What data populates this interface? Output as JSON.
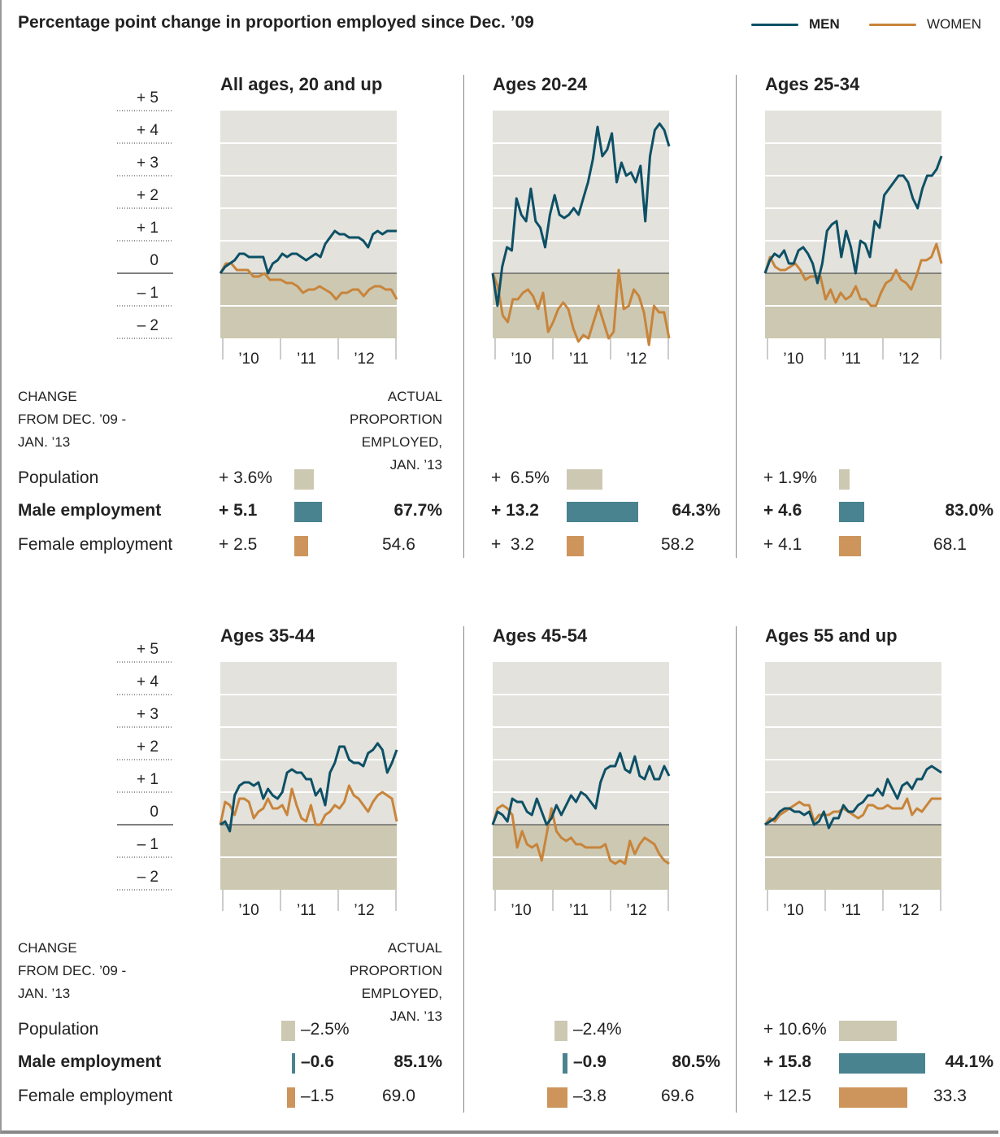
{
  "chart_data": {
    "type": "line",
    "title": "Percentage point change in proportion employed since Dec. ’09",
    "legend": [
      {
        "name": "MEN",
        "color": "#0d5066"
      },
      {
        "name": "WOMEN",
        "color": "#c8843a"
      }
    ],
    "legend_placement": "top-right",
    "ylabel": "Percentage point change",
    "y_ticks": [
      "+ 5",
      "+ 4",
      "+ 3",
      "+ 2",
      "+ 1",
      "0",
      "– 1",
      "– 2"
    ],
    "ylim": [
      -2,
      5
    ],
    "x_ticks": [
      "’10",
      "’11",
      "’12"
    ],
    "x_range": [
      "Dec 2009",
      "Jan 2013"
    ],
    "panels": [
      {
        "title": "All ages, 20 and up",
        "men": [
          0,
          0.2,
          0.3,
          0.4,
          0.6,
          0.6,
          0.5,
          0.5,
          0.5,
          0.5,
          0,
          0.3,
          0.4,
          0.6,
          0.5,
          0.6,
          0.6,
          0.5,
          0.4,
          0.5,
          0.6,
          0.5,
          0.9,
          1.1,
          1.3,
          1.2,
          1.2,
          1.1,
          1.1,
          1.1,
          1.0,
          0.8,
          1.2,
          1.3,
          1.2,
          1.3,
          1.3,
          1.3
        ],
        "women": [
          0,
          0.3,
          0.3,
          0.1,
          0.1,
          0.1,
          -0.1,
          -0.1,
          0,
          -0.2,
          -0.2,
          -0.2,
          -0.3,
          -0.3,
          -0.4,
          -0.6,
          -0.5,
          -0.5,
          -0.4,
          -0.5,
          -0.6,
          -0.8,
          -0.6,
          -0.6,
          -0.5,
          -0.5,
          -0.7,
          -0.5,
          -0.4,
          -0.4,
          -0.5,
          -0.5,
          -0.8
        ]
      },
      {
        "title": "Ages 20-24",
        "men": [
          0,
          -1,
          0.2,
          0.8,
          0.7,
          2.3,
          1.8,
          1.6,
          2.6,
          1.6,
          1.4,
          0.8,
          1.8,
          2.4,
          1.8,
          1.7,
          1.8,
          2.0,
          1.8,
          2.3,
          2.8,
          3.5,
          4.5,
          3.6,
          3.8,
          4.3,
          2.8,
          3.4,
          3.0,
          3.1,
          2.8,
          3.3,
          1.6,
          3.6,
          4.4,
          4.6,
          4.4,
          3.9
        ],
        "women": [
          0,
          -0.4,
          -1.3,
          -1.5,
          -0.8,
          -0.8,
          -0.6,
          -0.5,
          -0.7,
          -1.1,
          -0.6,
          -1.8,
          -1.5,
          -1.1,
          -0.9,
          -1.1,
          -1.7,
          -2.1,
          -1.9,
          -2.0,
          -1.5,
          -1.0,
          -1.5,
          -2.0,
          -1.8,
          0.1,
          -1.1,
          -1.0,
          -0.5,
          -0.7,
          -1.2,
          -2.2,
          -1.0,
          -1.2,
          -1.2,
          -2.0
        ]
      },
      {
        "title": "Ages 25-34",
        "men": [
          0,
          0.4,
          0.6,
          0.5,
          0.7,
          0.3,
          0.3,
          0.7,
          0.8,
          0.6,
          0.3,
          -0.3,
          0.3,
          1.3,
          1.5,
          1.6,
          0.5,
          1.3,
          0.8,
          0,
          1.0,
          0.9,
          0.5,
          1.6,
          1.4,
          2.4,
          2.6,
          2.8,
          3.0,
          3.0,
          2.8,
          2.3,
          2.0,
          2.6,
          3.0,
          3.0,
          3.2,
          3.6
        ],
        "women": [
          0,
          0.5,
          0.2,
          0.1,
          0.1,
          0.2,
          0.3,
          0.1,
          -0.2,
          -0.1,
          -0.1,
          -0.1,
          -0.8,
          -0.5,
          -0.9,
          -0.6,
          -0.8,
          -0.7,
          -0.4,
          -0.8,
          -0.8,
          -1.0,
          -1.0,
          -0.6,
          -0.3,
          -0.2,
          0.1,
          -0.2,
          -0.3,
          -0.5,
          -0.1,
          0.4,
          0.4,
          0.5,
          0.9,
          0.3
        ]
      },
      {
        "title": "Ages 35-44",
        "men": [
          0,
          0.1,
          -0.2,
          0.9,
          1.2,
          1.3,
          1.3,
          1.2,
          1.3,
          0.8,
          1.1,
          0.9,
          0.8,
          1.0,
          1.6,
          1.7,
          1.6,
          1.6,
          1.4,
          1.4,
          0.9,
          1.1,
          0.6,
          1.6,
          1.9,
          2.4,
          2.4,
          2.0,
          1.9,
          1.9,
          1.8,
          2.2,
          2.3,
          2.5,
          2.3,
          1.6,
          1.9,
          2.3
        ],
        "women": [
          0,
          0.7,
          0.6,
          0.3,
          0.8,
          0.8,
          0.7,
          0.2,
          0.4,
          0.5,
          0.8,
          0.5,
          0.5,
          0.6,
          0.3,
          1.1,
          0.6,
          0.2,
          0.1,
          0.6,
          0,
          0,
          0.3,
          0.4,
          0.6,
          0.5,
          0.7,
          1.2,
          0.9,
          0.8,
          0.6,
          0.4,
          0.7,
          0.9,
          1.0,
          0.9,
          0.8,
          0.1
        ]
      },
      {
        "title": "Ages 45-54",
        "men": [
          0,
          0.4,
          0.3,
          0.1,
          0.8,
          0.7,
          0.7,
          0.4,
          0.3,
          0.8,
          0.4,
          0,
          0.2,
          0.6,
          0.3,
          0.6,
          0.9,
          0.7,
          1.0,
          0.9,
          0.7,
          0.5,
          1.3,
          1.7,
          1.8,
          1.8,
          2.2,
          1.7,
          1.6,
          2.1,
          1.5,
          1.4,
          1.8,
          1.4,
          1.4,
          1.8,
          1.5
        ],
        "women": [
          0,
          0.5,
          0.6,
          0.5,
          0.3,
          -0.7,
          -0.2,
          -0.6,
          -0.7,
          -0.6,
          -1.1,
          -0.3,
          0.5,
          -0.2,
          -0.4,
          -0.5,
          -0.4,
          -0.6,
          -0.6,
          -0.7,
          -0.7,
          -0.7,
          -0.7,
          -0.6,
          -1.1,
          -1.2,
          -1.1,
          -1.2,
          -0.5,
          -0.9,
          -0.6,
          -0.4,
          -0.5,
          -0.6,
          -0.9,
          -1.1,
          -1.2
        ]
      },
      {
        "title": "Ages 55 and up",
        "men": [
          0,
          0.1,
          0.2,
          0.4,
          0.5,
          0.5,
          0.4,
          0.4,
          0.3,
          0.4,
          0,
          0.1,
          0.4,
          -0.1,
          0.2,
          0.2,
          0.6,
          0.4,
          0.4,
          0.6,
          0.7,
          0.9,
          0.9,
          1.1,
          0.9,
          1.4,
          1.1,
          0.8,
          1.2,
          1.3,
          1.1,
          1.4,
          1.4,
          1.7,
          1.8,
          1.7,
          1.6
        ],
        "women": [
          0,
          0.2,
          0.1,
          0.3,
          0.4,
          0.5,
          0.6,
          0.7,
          0.6,
          0.6,
          0.1,
          0.3,
          0.3,
          0.3,
          0.4,
          0.4,
          0.5,
          0.4,
          0.3,
          0.2,
          0.3,
          0.6,
          0.6,
          0.5,
          0.5,
          0.6,
          0.5,
          0.5,
          0.5,
          0.8,
          0.3,
          0.5,
          0.4,
          0.6,
          0.8,
          0.8,
          0.8
        ]
      }
    ]
  },
  "legend": {
    "men_label": "MEN",
    "women_label": "WOMEN"
  },
  "tables": {
    "header_change": [
      "CHANGE",
      "FROM DEC. ’09 -",
      "JAN. ’13"
    ],
    "header_actual": [
      "ACTUAL",
      "PROPORTION",
      "EMPLOYED,",
      "JAN. ’13"
    ],
    "row_labels": [
      "Population",
      "Male employment",
      "Female employment"
    ],
    "panels": [
      {
        "population_change": "+ 3.6%",
        "male_change": "+ 5.1",
        "female_change": "+ 2.5",
        "male_actual": "67.7%",
        "female_actual": "54.6",
        "population_value": 3.6,
        "male_value": 5.1,
        "female_value": 2.5
      },
      {
        "population_change": "+  6.5%",
        "male_change": "+ 13.2",
        "female_change": "+  3.2",
        "male_actual": "64.3%",
        "female_actual": "58.2",
        "population_value": 6.5,
        "male_value": 13.2,
        "female_value": 3.2
      },
      {
        "population_change": "+ 1.9%",
        "male_change": "+ 4.6",
        "female_change": "+ 4.1",
        "male_actual": "83.0%",
        "female_actual": "68.1",
        "population_value": 1.9,
        "male_value": 4.6,
        "female_value": 4.1
      },
      {
        "population_change": "–2.5%",
        "male_change": "–0.6",
        "female_change": "–1.5",
        "male_actual": "85.1%",
        "female_actual": "69.0",
        "population_value": -2.5,
        "male_value": -0.6,
        "female_value": -1.5
      },
      {
        "population_change": "–2.4%",
        "male_change": "–0.9",
        "female_change": "–3.8",
        "male_actual": "80.5%",
        "female_actual": "69.6",
        "population_value": -2.4,
        "male_value": -0.9,
        "female_value": -3.8
      },
      {
        "population_change": "+ 10.6%",
        "male_change": "+ 15.8",
        "female_change": "+ 12.5",
        "male_actual": "44.1%",
        "female_actual": "33.3",
        "population_value": 10.6,
        "male_value": 15.8,
        "female_value": 12.5
      }
    ]
  },
  "colors": {
    "men": "#0d5066",
    "women": "#c8843a",
    "pop_bar": "#cdc8b2",
    "men_bar": "#4a8390",
    "women_bar": "#cd955b",
    "plot_pos": "#e3e2dc",
    "plot_neg": "#cdc8b2"
  }
}
